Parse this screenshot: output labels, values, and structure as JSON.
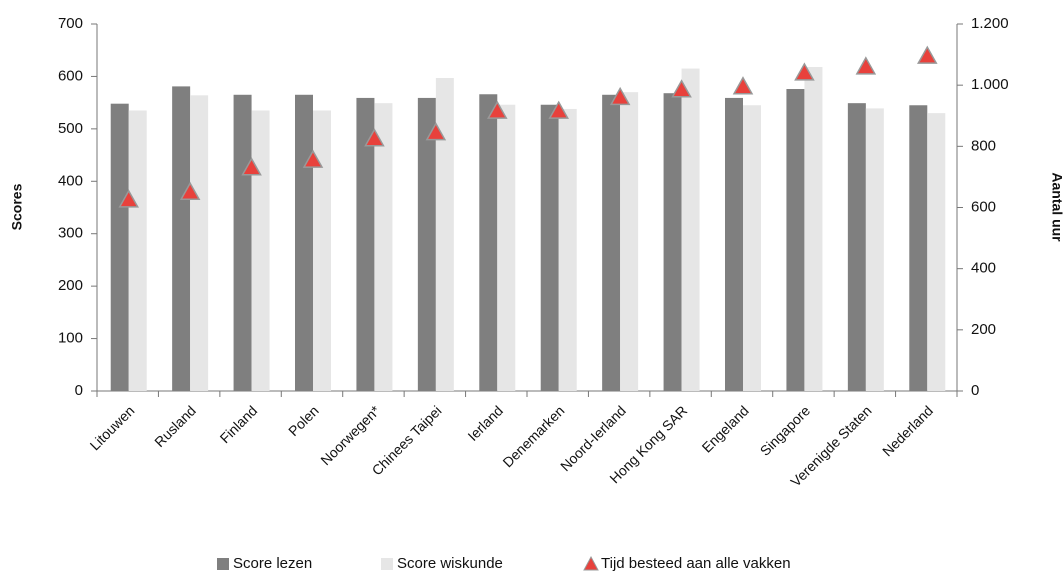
{
  "chart_data": {
    "type": "bar",
    "categories": [
      "Litouwen",
      "Rusland",
      "Finland",
      "Polen",
      "Noorwegen*",
      "Chinees Taipei",
      "Ierland",
      "Denemarken",
      "Noord-Ierland",
      "Hong Kong SAR",
      "Engeland",
      "Singapore",
      "Verenigde Staten",
      "Nederland"
    ],
    "series": [
      {
        "name": "Score lezen",
        "color": "#7f7f7f",
        "values": [
          548,
          581,
          565,
          565,
          559,
          559,
          566,
          546,
          565,
          568,
          559,
          576,
          549,
          545
        ]
      },
      {
        "name": "Score wiskunde",
        "color": "#e6e6e6",
        "values": [
          535,
          564,
          535,
          535,
          549,
          597,
          546,
          538,
          570,
          615,
          545,
          618,
          539,
          530
        ]
      },
      {
        "name": "Tijd besteed aan alle vakken",
        "color": "#e8413c",
        "type": "scatter",
        "axis": "y2",
        "values": [
          625,
          650,
          730,
          755,
          825,
          845,
          915,
          915,
          960,
          985,
          995,
          1040,
          1060,
          1095
        ]
      }
    ],
    "ylabel": "Scores",
    "y2label": "Aantal uur",
    "ylim": [
      0,
      700
    ],
    "yticks": [
      0,
      100,
      200,
      300,
      400,
      500,
      600,
      700
    ],
    "y2lim": [
      0,
      1200
    ],
    "y2ticks": [
      0,
      200,
      400,
      600,
      800,
      {
        "value": 1000,
        "label": "1.000"
      },
      {
        "value": 1200,
        "label": "1.200"
      }
    ],
    "legend": "bottom"
  }
}
